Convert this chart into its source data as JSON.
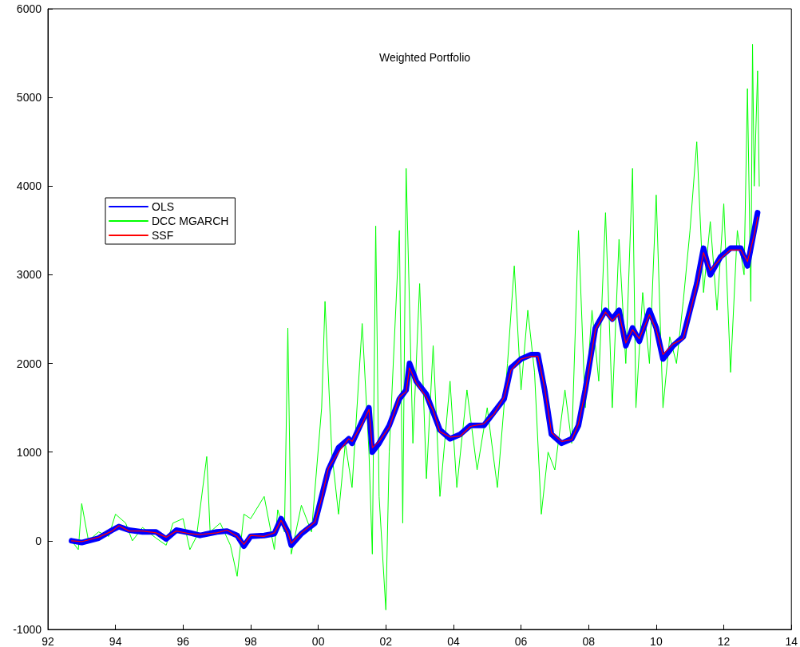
{
  "chart_data": {
    "type": "line",
    "title": "Weighted Portfolio",
    "xlim": [
      1992,
      2014
    ],
    "xticks": [
      {
        "value": 1992,
        "label": "92"
      },
      {
        "value": 1994,
        "label": "94"
      },
      {
        "value": 1996,
        "label": "96"
      },
      {
        "value": 1998,
        "label": "98"
      },
      {
        "value": 2000,
        "label": "00"
      },
      {
        "value": 2002,
        "label": "02"
      },
      {
        "value": 2004,
        "label": "04"
      },
      {
        "value": 2006,
        "label": "06"
      },
      {
        "value": 2008,
        "label": "08"
      },
      {
        "value": 2010,
        "label": "10"
      },
      {
        "value": 2012,
        "label": "12"
      },
      {
        "value": 2014,
        "label": "14"
      }
    ],
    "ylim": [
      -1000,
      6000
    ],
    "yticks": [
      -1000,
      0,
      1000,
      2000,
      3000,
      4000,
      5000,
      6000
    ],
    "grid": false,
    "legend": "top left",
    "marker": "none",
    "line_style": "solid",
    "series": [
      {
        "name": "DCC MGARCH",
        "color": "#00ff00",
        "x": [
          1992.7,
          1992.9,
          1993.0,
          1993.2,
          1993.5,
          1993.8,
          1994.0,
          1994.3,
          1994.5,
          1994.8,
          1995.2,
          1995.5,
          1995.7,
          1996.0,
          1996.2,
          1996.4,
          1996.7,
          1996.8,
          1997.1,
          1997.4,
          1997.6,
          1997.8,
          1998.0,
          1998.4,
          1998.7,
          1998.8,
          1999.0,
          1999.1,
          1999.2,
          1999.5,
          1999.8,
          2000.1,
          2000.2,
          2000.4,
          2000.6,
          2000.8,
          2001.0,
          2001.3,
          2001.5,
          2001.6,
          2001.7,
          2001.8,
          2002.0,
          2002.1,
          2002.4,
          2002.5,
          2002.6,
          2002.8,
          2003.0,
          2003.2,
          2003.4,
          2003.6,
          2003.9,
          2004.1,
          2004.4,
          2004.7,
          2005.0,
          2005.3,
          2005.6,
          2005.8,
          2006.0,
          2006.2,
          2006.4,
          2006.6,
          2006.8,
          2007.0,
          2007.3,
          2007.5,
          2007.7,
          2007.9,
          2008.1,
          2008.3,
          2008.5,
          2008.7,
          2008.9,
          2009.1,
          2009.3,
          2009.4,
          2009.6,
          2009.8,
          2010.0,
          2010.2,
          2010.4,
          2010.6,
          2010.8,
          2011.0,
          2011.2,
          2011.4,
          2011.6,
          2011.8,
          2012.0,
          2012.2,
          2012.4,
          2012.6,
          2012.7,
          2012.8,
          2012.85,
          2012.9,
          2013.0,
          2013.05
        ],
        "values": [
          0,
          -100,
          420,
          0,
          100,
          50,
          300,
          200,
          0,
          150,
          30,
          -50,
          200,
          250,
          -100,
          50,
          950,
          100,
          200,
          -50,
          -400,
          300,
          250,
          500,
          -100,
          350,
          100,
          2400,
          -150,
          400,
          100,
          1500,
          2700,
          1000,
          300,
          1100,
          600,
          2450,
          1000,
          -150,
          3550,
          500,
          -780,
          1000,
          3500,
          200,
          4200,
          1100,
          2900,
          700,
          2200,
          500,
          1800,
          600,
          1700,
          800,
          1500,
          600,
          2000,
          3100,
          1700,
          2600,
          1900,
          300,
          1000,
          800,
          1700,
          1100,
          3500,
          1500,
          2600,
          1800,
          3700,
          1500,
          3400,
          2000,
          4200,
          1500,
          2800,
          2000,
          3900,
          1500,
          2300,
          2000,
          2700,
          3500,
          4500,
          2800,
          3600,
          2600,
          3800,
          1900,
          3500,
          3000,
          5100,
          2700,
          5600,
          4000,
          5300,
          4000
        ]
      },
      {
        "name": "OLS",
        "color": "#0000ff",
        "x": [
          1992.7,
          1993.0,
          1993.5,
          1993.9,
          1994.1,
          1994.4,
          1994.8,
          1995.2,
          1995.5,
          1995.8,
          1996.2,
          1996.5,
          1997.0,
          1997.3,
          1997.6,
          1997.8,
          1998.0,
          1998.4,
          1998.7,
          1998.9,
          1999.1,
          1999.2,
          1999.5,
          1999.9,
          2000.1,
          2000.3,
          2000.6,
          2000.9,
          2001.0,
          2001.3,
          2001.5,
          2001.6,
          2001.8,
          2002.1,
          2002.4,
          2002.6,
          2002.7,
          2002.9,
          2003.2,
          2003.4,
          2003.6,
          2003.9,
          2004.2,
          2004.5,
          2004.9,
          2005.2,
          2005.5,
          2005.7,
          2006.0,
          2006.3,
          2006.5,
          2006.7,
          2006.9,
          2007.2,
          2007.5,
          2007.7,
          2007.9,
          2008.2,
          2008.5,
          2008.7,
          2008.9,
          2009.1,
          2009.3,
          2009.5,
          2009.8,
          2010.0,
          2010.2,
          2010.5,
          2010.8,
          2011.0,
          2011.2,
          2011.4,
          2011.6,
          2011.9,
          2012.2,
          2012.5,
          2012.7,
          2012.9,
          2013.0
        ],
        "values": [
          0,
          -20,
          30,
          120,
          160,
          120,
          100,
          100,
          20,
          120,
          90,
          60,
          100,
          110,
          60,
          -60,
          50,
          60,
          80,
          250,
          100,
          -50,
          80,
          200,
          500,
          800,
          1050,
          1150,
          1100,
          1350,
          1500,
          1000,
          1100,
          1300,
          1600,
          1700,
          2000,
          1800,
          1650,
          1450,
          1250,
          1150,
          1200,
          1300,
          1300,
          1450,
          1600,
          1950,
          2050,
          2100,
          2100,
          1700,
          1200,
          1100,
          1150,
          1300,
          1700,
          2400,
          2600,
          2500,
          2600,
          2200,
          2400,
          2250,
          2600,
          2400,
          2050,
          2200,
          2300,
          2600,
          2900,
          3300,
          3000,
          3200,
          3300,
          3300,
          3100,
          3500,
          3700
        ]
      },
      {
        "name": "SSF",
        "color": "#ff0000",
        "x": [
          1992.7,
          1993.0,
          1993.5,
          1993.9,
          1994.1,
          1994.4,
          1994.8,
          1995.2,
          1995.5,
          1995.8,
          1996.2,
          1996.5,
          1997.0,
          1997.3,
          1997.6,
          1997.8,
          1998.0,
          1998.4,
          1998.7,
          1998.9,
          1999.1,
          1999.2,
          1999.5,
          1999.9,
          2000.1,
          2000.3,
          2000.6,
          2000.9,
          2001.0,
          2001.3,
          2001.5,
          2001.6,
          2001.8,
          2002.1,
          2002.4,
          2002.6,
          2002.7,
          2002.9,
          2003.2,
          2003.4,
          2003.6,
          2003.9,
          2004.2,
          2004.5,
          2004.9,
          2005.2,
          2005.5,
          2005.7,
          2006.0,
          2006.3,
          2006.5,
          2006.7,
          2006.9,
          2007.2,
          2007.5,
          2007.7,
          2007.9,
          2008.2,
          2008.5,
          2008.7,
          2008.9,
          2009.1,
          2009.3,
          2009.5,
          2009.8,
          2010.0,
          2010.2,
          2010.5,
          2010.8,
          2011.0,
          2011.2,
          2011.4,
          2011.6,
          2011.9,
          2012.2,
          2012.5,
          2012.7,
          2012.9,
          2013.0
        ],
        "values": [
          0,
          -10,
          40,
          110,
          170,
          110,
          110,
          90,
          40,
          110,
          80,
          70,
          90,
          120,
          50,
          -40,
          60,
          50,
          90,
          230,
          90,
          -30,
          90,
          210,
          480,
          820,
          1000,
          1150,
          1120,
          1320,
          1480,
          1050,
          1120,
          1280,
          1620,
          1680,
          1950,
          1780,
          1620,
          1470,
          1230,
          1170,
          1180,
          1290,
          1320,
          1430,
          1620,
          1920,
          2050,
          2080,
          2080,
          1720,
          1220,
          1120,
          1140,
          1320,
          1680,
          2380,
          2580,
          2480,
          2560,
          2230,
          2380,
          2280,
          2550,
          2380,
          2100,
          2220,
          2280,
          2580,
          2880,
          3250,
          3050,
          3180,
          3280,
          3280,
          3150,
          3450,
          3650
        ]
      }
    ]
  }
}
